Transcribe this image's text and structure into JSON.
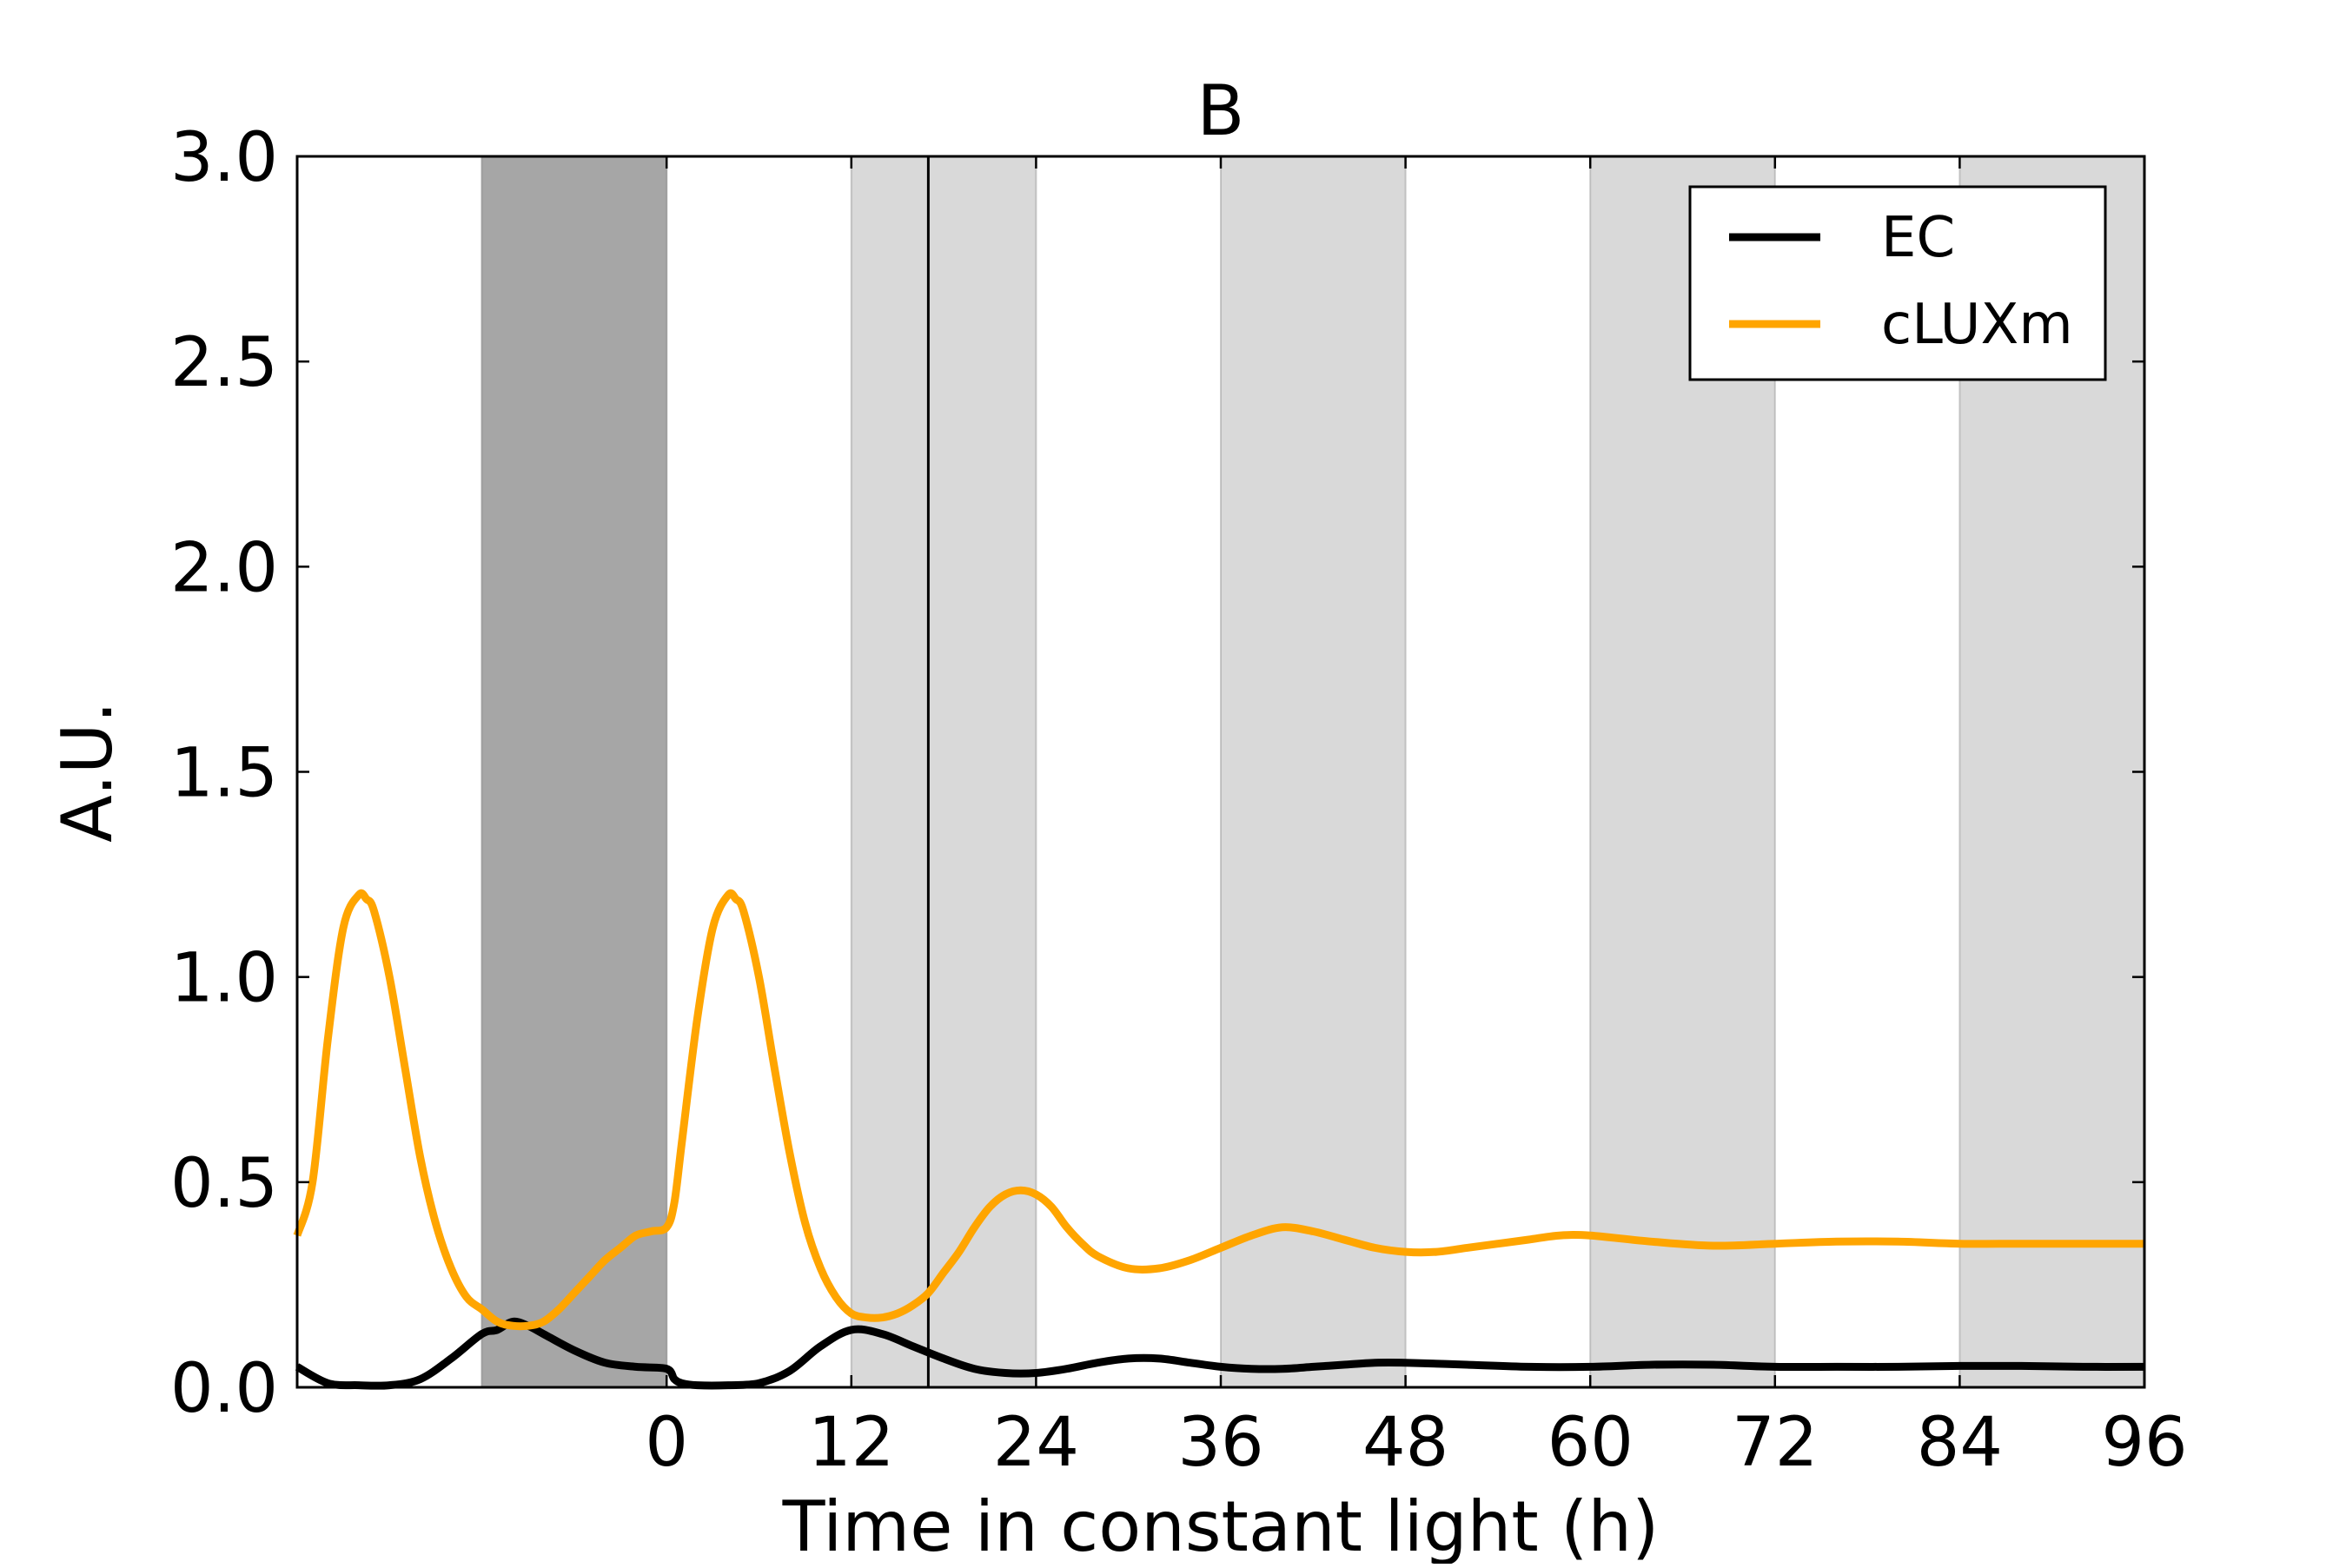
{
  "chart_data": {
    "type": "line",
    "title": "B",
    "xlabel": "Time in constant light (h)",
    "ylabel": "A.U.",
    "xlim": [
      -24,
      96
    ],
    "ylim": [
      0,
      3.0
    ],
    "x_ticks": [
      0,
      12,
      24,
      36,
      48,
      60,
      72,
      84,
      96
    ],
    "x_tick_labels": [
      "0",
      "12",
      "24",
      "36",
      "48",
      "60",
      "72",
      "84",
      "96"
    ],
    "y_ticks": [
      0.0,
      0.5,
      1.0,
      1.5,
      2.0,
      2.5,
      3.0
    ],
    "y_tick_labels": [
      "0.0",
      "0.5",
      "1.0",
      "1.5",
      "2.0",
      "2.5",
      "3.0"
    ],
    "legend_position": "top-right",
    "shaded_regions": [
      {
        "start": -12,
        "end": 0,
        "shade": "dark",
        "color": "#a6a6a6"
      },
      {
        "start": 12,
        "end": 24,
        "shade": "light",
        "color": "#d9d9d9"
      },
      {
        "start": 36,
        "end": 48,
        "shade": "light",
        "color": "#d9d9d9"
      },
      {
        "start": 60,
        "end": 72,
        "shade": "light",
        "color": "#d9d9d9"
      },
      {
        "start": 84,
        "end": 96,
        "shade": "light",
        "color": "#d9d9d9"
      }
    ],
    "vertical_lines": [
      17
    ],
    "series": [
      {
        "name": "EC",
        "color": "#000000",
        "x": [
          -24,
          -22,
          -20,
          -18,
          -16,
          -14,
          -12,
          -11,
          -10,
          -9,
          -8,
          -6,
          -4,
          -2,
          0,
          0.5,
          1,
          2,
          4,
          6,
          8,
          10,
          12,
          14,
          16,
          18,
          20,
          22,
          24,
          26,
          28,
          30,
          32,
          34,
          36,
          38,
          40,
          42,
          44,
          46,
          48,
          52,
          56,
          60,
          64,
          68,
          72,
          76,
          80,
          84,
          88,
          92,
          96
        ],
        "y": [
          0.05,
          0.01,
          0.005,
          0.005,
          0.02,
          0.07,
          0.13,
          0.14,
          0.16,
          0.15,
          0.13,
          0.09,
          0.06,
          0.05,
          0.045,
          0.02,
          0.01,
          0.005,
          0.005,
          0.01,
          0.04,
          0.1,
          0.14,
          0.13,
          0.1,
          0.07,
          0.045,
          0.035,
          0.035,
          0.045,
          0.06,
          0.07,
          0.07,
          0.06,
          0.05,
          0.045,
          0.045,
          0.05,
          0.055,
          0.06,
          0.06,
          0.055,
          0.05,
          0.05,
          0.055,
          0.055,
          0.05,
          0.05,
          0.05,
          0.052,
          0.052,
          0.05,
          0.05
        ]
      },
      {
        "name": "cLUXm",
        "color": "#ffa500",
        "x": [
          -24,
          -23,
          -22,
          -21,
          -20,
          -19.5,
          -19,
          -18,
          -17,
          -16,
          -15,
          -14,
          -13,
          -12,
          -11,
          -10,
          -9,
          -8,
          -7,
          -6,
          -5,
          -4,
          -3,
          -2,
          -1,
          0,
          0.5,
          1,
          2,
          3,
          4,
          4.5,
          5,
          6,
          7,
          8,
          9,
          10,
          11,
          12,
          13,
          14,
          15,
          16,
          17,
          18,
          19,
          20,
          21,
          22,
          23,
          24,
          25,
          26,
          27,
          28,
          30,
          32,
          34,
          36,
          38,
          40,
          42,
          44,
          46,
          48,
          50,
          52,
          54,
          56,
          58,
          60,
          64,
          68,
          72,
          76,
          80,
          84,
          88,
          92,
          96
        ],
        "y": [
          0.37,
          0.5,
          0.85,
          1.12,
          1.2,
          1.19,
          1.16,
          1.0,
          0.78,
          0.56,
          0.4,
          0.29,
          0.22,
          0.19,
          0.16,
          0.15,
          0.15,
          0.16,
          0.19,
          0.23,
          0.27,
          0.31,
          0.34,
          0.37,
          0.38,
          0.39,
          0.45,
          0.6,
          0.9,
          1.12,
          1.2,
          1.19,
          1.16,
          1.0,
          0.78,
          0.57,
          0.4,
          0.29,
          0.22,
          0.18,
          0.17,
          0.17,
          0.18,
          0.2,
          0.23,
          0.28,
          0.33,
          0.39,
          0.44,
          0.47,
          0.48,
          0.47,
          0.44,
          0.39,
          0.35,
          0.32,
          0.29,
          0.29,
          0.31,
          0.34,
          0.37,
          0.39,
          0.38,
          0.36,
          0.34,
          0.33,
          0.33,
          0.34,
          0.35,
          0.36,
          0.37,
          0.37,
          0.355,
          0.345,
          0.35,
          0.355,
          0.355,
          0.35,
          0.35,
          0.35,
          0.35
        ]
      }
    ]
  }
}
